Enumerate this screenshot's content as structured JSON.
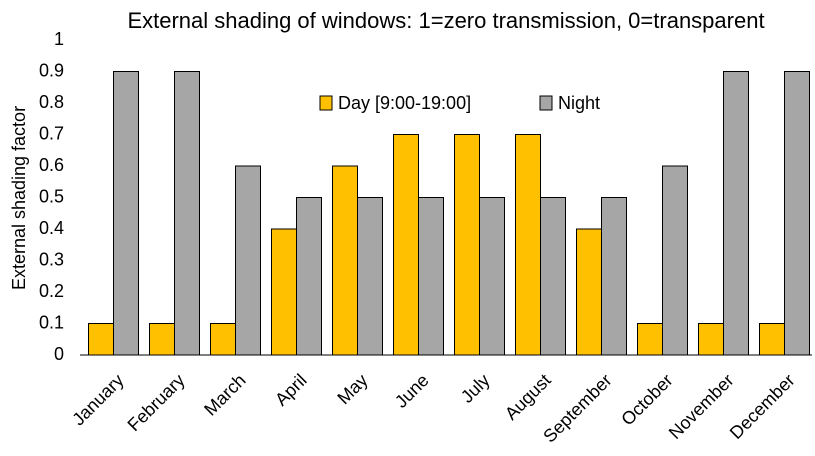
{
  "chart_data": {
    "type": "bar",
    "title": "External shading of windows: 1=zero transmission, 0=transparent",
    "y_label": "External shading factor",
    "categories": [
      "January",
      "February",
      "March",
      "April",
      "May",
      "June",
      "July",
      "August",
      "September",
      "October",
      "November",
      "December"
    ],
    "series": [
      {
        "name": "Day [9:00-19:00]",
        "color": "#ffc000",
        "values": [
          0.1,
          0.1,
          0.1,
          0.4,
          0.6,
          0.7,
          0.7,
          0.7,
          0.4,
          0.1,
          0.1,
          0.1
        ]
      },
      {
        "name": "Night",
        "color": "#a6a6a6",
        "values": [
          0.9,
          0.9,
          0.6,
          0.5,
          0.5,
          0.5,
          0.5,
          0.5,
          0.5,
          0.6,
          0.9,
          0.9
        ]
      }
    ],
    "ylim": [
      0,
      1
    ],
    "yticks": [
      1,
      0.9,
      0.8,
      0.7,
      0.6,
      0.5,
      0.4,
      0.3,
      0.2,
      0.1,
      0
    ],
    "grid": false,
    "legend": "top"
  }
}
